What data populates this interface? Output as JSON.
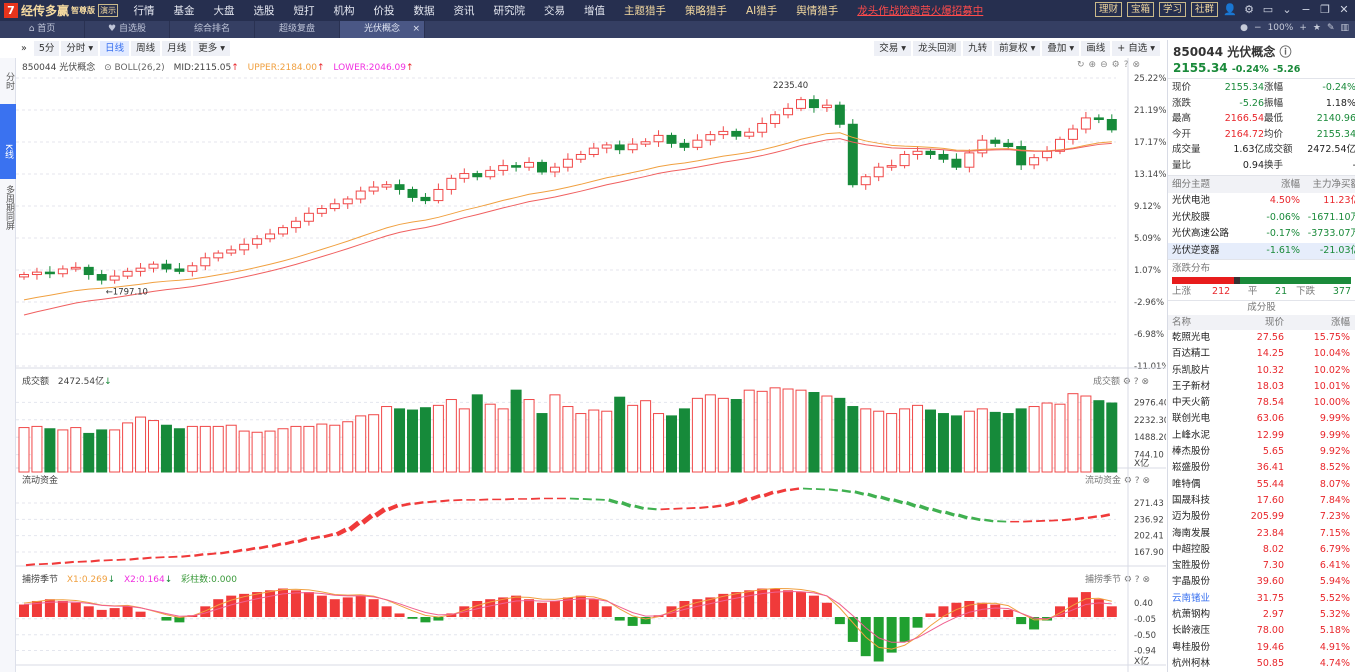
{
  "app": {
    "logo_mark": "7",
    "name": "经传多赢",
    "edition": "智尊版",
    "demo": "演示"
  },
  "menu": [
    {
      "label": "行情"
    },
    {
      "label": "基金"
    },
    {
      "label": "大盘"
    },
    {
      "label": "选股"
    },
    {
      "label": "短打"
    },
    {
      "label": "机构"
    },
    {
      "label": "价投"
    },
    {
      "label": "数据"
    },
    {
      "label": "资讯"
    },
    {
      "label": "研究院"
    },
    {
      "label": "交易"
    },
    {
      "label": "增值"
    },
    {
      "label": "主题猎手",
      "style": "gold"
    },
    {
      "label": "策略猎手",
      "style": "gold"
    },
    {
      "label": "AI猎手",
      "style": "gold"
    },
    {
      "label": "舆情猎手",
      "style": "gold"
    },
    {
      "label": "龙头作战险跑营火爆招募中",
      "style": "promo"
    }
  ],
  "top_right_buttons": [
    "理财",
    "宝箱",
    "学习",
    "社群"
  ],
  "window_icons": [
    "user-icon",
    "gear-icon",
    "window-icon",
    "chevron-down-icon",
    "minimize-icon",
    "restore-icon",
    "close-icon"
  ],
  "tabs": [
    {
      "label": "首页",
      "icon": "home-icon"
    },
    {
      "label": "自选股",
      "icon": "heart-icon"
    },
    {
      "label": "综合排名"
    },
    {
      "label": "超级复盘"
    },
    {
      "label": "光伏概念",
      "active": true
    }
  ],
  "zoom": {
    "level": "100%"
  },
  "left_strip": [
    "分时",
    "K线",
    "多周期同屏"
  ],
  "toolbar": {
    "left": [
      "5分",
      "分时 ▾",
      "日线",
      "周线",
      "月线",
      "更多 ▾"
    ],
    "active": "日线",
    "right": [
      "交易 ▾",
      "龙头回测",
      "九转",
      "前复权 ▾",
      "叠加 ▾",
      "画线",
      "+ 自选 ▾"
    ]
  },
  "main_chart": {
    "header": {
      "code_name": "850044 光伏概念",
      "indicator": "BOLL(26,2)",
      "mid": "MID:2115.05",
      "upper": "UPPER:2184.00",
      "lower": "LOWER:2046.09"
    },
    "y_ticks": [
      "25.22%",
      "21.19%",
      "17.17%",
      "13.14%",
      "9.12%",
      "5.09%",
      "1.07%",
      "-2.96%",
      "-6.98%",
      "-11.01%"
    ],
    "high_label": "2235.40",
    "high_index": 60,
    "low_label": "1797.10",
    "low_index": 6,
    "closes_pct": [
      0.5,
      0.8,
      0.6,
      1.2,
      1.4,
      0.5,
      -0.2,
      0.3,
      0.9,
      1.3,
      1.8,
      1.2,
      0.9,
      1.6,
      2.6,
      3.2,
      3.6,
      4.3,
      5.0,
      5.6,
      6.4,
      7.2,
      8.2,
      8.8,
      9.4,
      10.0,
      11.0,
      11.5,
      11.8,
      11.2,
      10.2,
      9.8,
      11.2,
      12.6,
      13.2,
      12.8,
      13.6,
      14.2,
      14.0,
      14.6,
      13.4,
      14.0,
      15.0,
      15.6,
      16.4,
      16.8,
      16.2,
      16.9,
      17.2,
      18.0,
      17.0,
      16.5,
      17.4,
      18.1,
      18.5,
      17.9,
      18.4,
      19.5,
      20.6,
      21.4,
      22.5,
      21.5,
      21.8,
      19.4,
      11.8,
      12.8,
      14.0,
      14.2,
      15.6,
      16.0,
      15.6,
      15.0,
      14.0,
      15.8,
      17.4,
      17.0,
      16.6,
      14.3,
      15.2,
      16.0,
      17.5,
      18.8,
      20.2,
      20.0,
      18.7
    ],
    "colors": {
      "up": "#f04848",
      "down": "#168a3a",
      "mid": "#f0a040",
      "lower": "#f06060"
    }
  },
  "volume_panel": {
    "title": "成交额",
    "value": "2472.54亿",
    "y_ticks": [
      "2976.40",
      "2232.30",
      "1488.20",
      "744.10"
    ],
    "unit": "X亿",
    "values": [
      1900,
      1950,
      1850,
      1800,
      1900,
      1650,
      1800,
      1800,
      2100,
      2350,
      2200,
      2000,
      1850,
      1950,
      1950,
      1950,
      2000,
      1750,
      1700,
      1750,
      1850,
      1950,
      1950,
      2050,
      2000,
      2150,
      2400,
      2450,
      2800,
      2700,
      2650,
      2750,
      2850,
      3100,
      2700,
      3300,
      2900,
      2700,
      3500,
      3100,
      2500,
      3300,
      2800,
      2500,
      2650,
      2600,
      3200,
      2850,
      3050,
      2500,
      2400,
      2700,
      3150,
      3300,
      3150,
      3100,
      3500,
      3450,
      3600,
      3550,
      3500,
      3400,
      3250,
      3150,
      2800,
      2700,
      2600,
      2500,
      2700,
      2850,
      2650,
      2500,
      2400,
      2600,
      2700,
      2550,
      2500,
      2700,
      2800,
      2950,
      2900,
      3350,
      3250,
      3050,
      2950
    ]
  },
  "fund_panel": {
    "title": "流动资金",
    "y_ticks": [
      "271.43",
      "236.92",
      "202.41",
      "167.90"
    ],
    "unit": "X亿",
    "values": [
      140,
      142,
      143,
      145,
      147,
      148,
      150,
      151,
      152,
      154,
      156,
      157,
      158,
      160,
      163,
      165,
      168,
      172,
      176,
      180,
      185,
      190,
      196,
      200,
      205,
      215,
      230,
      245,
      258,
      266,
      270,
      273,
      275,
      277,
      278,
      278,
      279,
      279,
      280,
      280,
      281,
      281,
      281,
      280,
      279,
      278,
      272,
      265,
      260,
      258,
      259,
      260,
      261,
      263,
      266,
      272,
      280,
      287,
      294,
      299,
      302,
      301,
      300,
      298,
      295,
      290,
      284,
      278,
      272,
      265,
      258,
      252,
      246,
      240,
      236,
      233,
      232,
      232,
      233,
      234,
      235,
      237,
      240,
      243,
      247
    ]
  },
  "catch_panel": {
    "title": "捕捞季节",
    "x1": "X1:0.269",
    "x2": "X2:0.164",
    "bars_label": "彩柱数:0.000",
    "y_ticks": [
      "0.40",
      "-0.05",
      "-0.50",
      "-0.94"
    ],
    "values": [
      0.35,
      0.45,
      0.5,
      0.45,
      0.4,
      0.3,
      0.2,
      0.25,
      0.3,
      0.15,
      0.0,
      -0.1,
      -0.15,
      0.05,
      0.3,
      0.5,
      0.6,
      0.65,
      0.7,
      0.75,
      0.8,
      0.75,
      0.7,
      0.6,
      0.5,
      0.55,
      0.6,
      0.5,
      0.3,
      0.1,
      -0.05,
      -0.15,
      -0.1,
      0.1,
      0.3,
      0.45,
      0.5,
      0.55,
      0.6,
      0.5,
      0.4,
      0.45,
      0.55,
      0.6,
      0.5,
      0.3,
      -0.1,
      -0.25,
      -0.2,
      0.05,
      0.3,
      0.45,
      0.5,
      0.55,
      0.65,
      0.7,
      0.75,
      0.8,
      0.8,
      0.75,
      0.7,
      0.6,
      0.4,
      -0.2,
      -0.7,
      -1.1,
      -1.25,
      -1.0,
      -0.7,
      -0.3,
      0.1,
      0.3,
      0.4,
      0.45,
      0.4,
      0.35,
      0.2,
      -0.2,
      -0.35,
      -0.1,
      0.3,
      0.55,
      0.7,
      0.5,
      0.3
    ]
  },
  "quote": {
    "title": "850044 光伏概念",
    "price": "2155.34",
    "pct": "-0.24%",
    "chg": "-5.26",
    "rows": [
      [
        "现价",
        "2155.34",
        "g",
        "涨幅",
        "-0.24%",
        "g"
      ],
      [
        "涨跌",
        "-5.26",
        "g",
        "振幅",
        "1.18%",
        "k"
      ],
      [
        "最高",
        "2166.54",
        "r",
        "最低",
        "2140.96",
        "g"
      ],
      [
        "今开",
        "2164.72",
        "r",
        "均价",
        "2155.34",
        "g"
      ],
      [
        "成交量",
        "1.63亿",
        "k",
        "成交额",
        "2472.54亿",
        "k"
      ],
      [
        "量比",
        "0.94",
        "k",
        "换手",
        "-",
        "k"
      ]
    ]
  },
  "sub_themes": {
    "headers": [
      "细分主题",
      "涨幅",
      "主力净买额"
    ],
    "rows": [
      [
        "光伏电池",
        "4.50%",
        "11.23亿",
        "r"
      ],
      [
        "光伏胶膜",
        "-0.06%",
        "-1671.10万",
        "g"
      ],
      [
        "光伏高速公路",
        "-0.17%",
        "-3733.07万",
        "g"
      ],
      [
        "光伏逆变器",
        "-1.61%",
        "-21.03亿",
        "g"
      ]
    ]
  },
  "distribution": {
    "title": "涨跌分布",
    "up_label": "上涨",
    "up": "212",
    "flat_label": "平",
    "flat": "21",
    "down_label": "下跌",
    "down": "377"
  },
  "constituents": {
    "title": "成分股",
    "headers": [
      "名称",
      "现价",
      "涨幅"
    ],
    "rows": [
      [
        "乾照光电",
        "27.56",
        "15.75%"
      ],
      [
        "百达精工",
        "14.25",
        "10.04%"
      ],
      [
        "乐凯胶片",
        "10.32",
        "10.02%"
      ],
      [
        "王子新材",
        "18.03",
        "10.01%"
      ],
      [
        "中天火箭",
        "78.54",
        "10.00%"
      ],
      [
        "联创光电",
        "63.06",
        "9.99%"
      ],
      [
        "上峰水泥",
        "12.99",
        "9.99%"
      ],
      [
        "棒杰股份",
        "5.65",
        "9.92%"
      ],
      [
        "崧盛股份",
        "36.41",
        "8.52%"
      ],
      [
        "唯特偶",
        "55.44",
        "8.07%"
      ],
      [
        "国晟科技",
        "17.60",
        "7.84%"
      ],
      [
        "迈为股份",
        "205.99",
        "7.23%"
      ],
      [
        "海南发展",
        "23.84",
        "7.15%"
      ],
      [
        "中超控股",
        "8.02",
        "6.79%"
      ],
      [
        "宝胜股份",
        "7.30",
        "6.41%"
      ],
      [
        "宇晶股份",
        "39.60",
        "5.94%"
      ],
      [
        "云南锗业",
        "31.75",
        "5.52%"
      ],
      [
        "杭萧钢构",
        "2.97",
        "5.32%"
      ],
      [
        "长龄液压",
        "78.00",
        "5.18%"
      ],
      [
        "粤桂股份",
        "19.46",
        "4.91%"
      ],
      [
        "杭州柯林",
        "50.85",
        "4.74%"
      ]
    ],
    "highlight_index": 16
  }
}
